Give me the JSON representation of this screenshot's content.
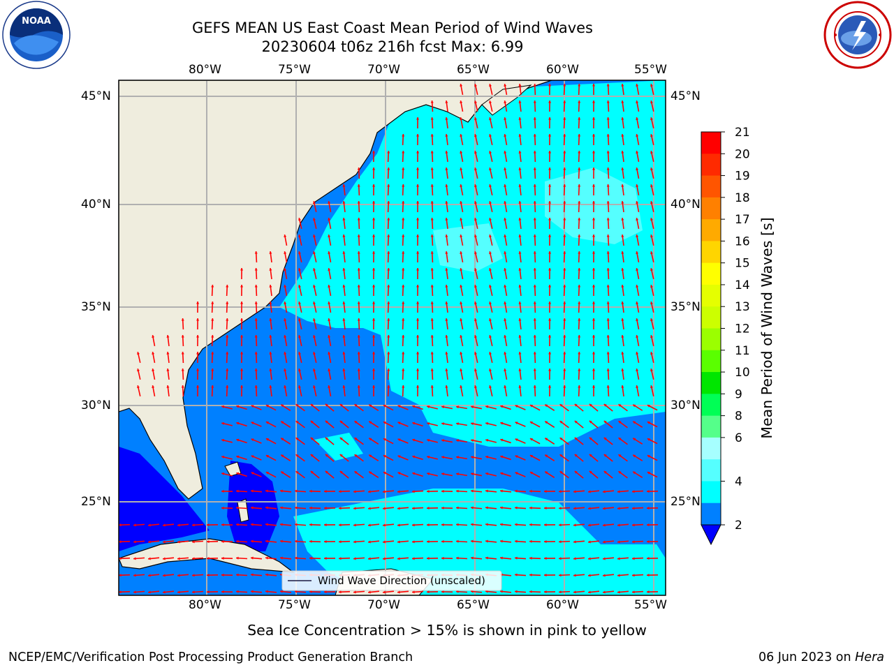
{
  "header": {
    "title_line1": "GEFS MEAN US East Coast Mean Period of Wind Waves",
    "title_line2": "20230604 t06z 216h fcst   Max: 6.99"
  },
  "logos": {
    "left": {
      "name": "noaa-logo",
      "text": "NOAA",
      "ring_text": "NATIONAL OCEANIC AND ATMOSPHERIC ADMINISTRATION · U.S. DEPARTMENT OF COMMERCE"
    },
    "right": {
      "name": "nws-logo",
      "ring_text": "NATIONAL WEATHER SERVICE"
    }
  },
  "map": {
    "lon_labels": [
      "80°W",
      "75°W",
      "70°W",
      "65°W",
      "60°W",
      "55°W"
    ],
    "lat_labels": [
      "45°N",
      "40°N",
      "35°N",
      "30°N",
      "25°N"
    ],
    "legend_label": "Wind Wave Direction (unscaled)",
    "colors": {
      "land": "#efedde",
      "ocean_light": "#00ffff",
      "ocean_lighter": "#55ffff",
      "ocean_mid": "#0080ff",
      "ocean_dark": "#0000ff",
      "arrow": "#ff0000",
      "grid": "#b0b0b0"
    }
  },
  "colorbar": {
    "label": "Mean Period of Wind Waves [s]",
    "ticks": [
      "21",
      "20",
      "19",
      "18",
      "17",
      "16",
      "15",
      "14",
      "13",
      "12",
      "11",
      "10",
      "9",
      "8",
      "6",
      "4",
      "2"
    ],
    "colors_top_to_bottom": [
      "#ff0000",
      "#ff2a00",
      "#ff5500",
      "#ff8000",
      "#ffaa00",
      "#ffd500",
      "#ffff00",
      "#e5ff00",
      "#ccff00",
      "#9bff00",
      "#5aff00",
      "#00e600",
      "#00ff55",
      "#55ff8a",
      "#a6ffff",
      "#55ffff",
      "#00ffff",
      "#0080ff"
    ],
    "extend_color": "#0000ff"
  },
  "footer": {
    "note": "Sea Ice Concentration > 15% is shown in pink to yellow",
    "credit": "NCEP/EMC/Verification Post Processing Product Generation Branch",
    "date": "06 Jun 2023 on ",
    "machine": "Hera"
  }
}
